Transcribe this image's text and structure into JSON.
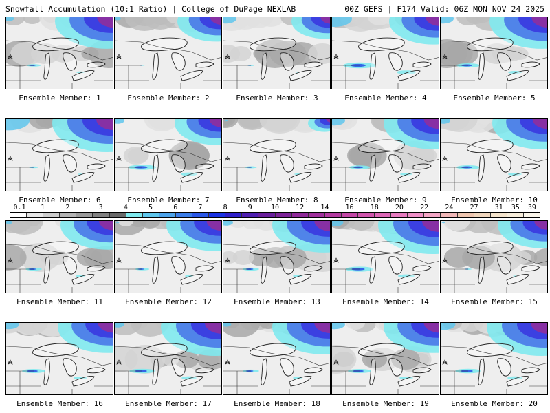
{
  "header": {
    "title_left": "Snowfall Accumulation (10:1 Ratio) | College of DuPage NEXLAB",
    "title_right": "00Z GEFS | F174 Valid: 06Z MON NOV 24 2025"
  },
  "members": [
    {
      "label": "Ensemble Member: 1",
      "ne": 0.95,
      "nw": 0.15,
      "belt": 0.3
    },
    {
      "label": "Ensemble Member: 2",
      "ne": 0.7,
      "nw": 0.1,
      "belt": 0.1
    },
    {
      "label": "Ensemble Member: 3",
      "ne": 0.6,
      "nw": 0.3,
      "belt": 0.15
    },
    {
      "label": "Ensemble Member: 4",
      "ne": 0.8,
      "nw": 0.5,
      "belt": 0.7
    },
    {
      "label": "Ensemble Member: 5",
      "ne": 0.95,
      "nw": 0.3,
      "belt": 0.5
    },
    {
      "label": "Ensemble Member: 6",
      "ne": 1.0,
      "nw": 0.6,
      "belt": 0.2
    },
    {
      "label": "Ensemble Member: 7",
      "ne": 0.75,
      "nw": 0.2,
      "belt": 0.6
    },
    {
      "label": "Ensemble Member: 8",
      "ne": 0.3,
      "nw": 0.05,
      "belt": 0.25
    },
    {
      "label": "Ensemble Member: 9",
      "ne": 0.9,
      "nw": 0.3,
      "belt": 0.45
    },
    {
      "label": "Ensemble Member: 10",
      "ne": 0.9,
      "nw": 0.2,
      "belt": 0.5
    },
    {
      "label": "Ensemble Member: 11",
      "ne": 0.85,
      "nw": 0.1,
      "belt": 0.35
    },
    {
      "label": "Ensemble Member: 12",
      "ne": 0.9,
      "nw": 0.05,
      "belt": 0.3
    },
    {
      "label": "Ensemble Member: 13",
      "ne": 0.95,
      "nw": 0.2,
      "belt": 0.35
    },
    {
      "label": "Ensemble Member: 14",
      "ne": 1.0,
      "nw": 0.25,
      "belt": 0.6
    },
    {
      "label": "Ensemble Member: 15",
      "ne": 0.8,
      "nw": 0.05,
      "belt": 0.15
    },
    {
      "label": "Ensemble Member: 16",
      "ne": 0.9,
      "nw": 0.3,
      "belt": 0.5
    },
    {
      "label": "Ensemble Member: 17",
      "ne": 1.0,
      "nw": 0.2,
      "belt": 0.55
    },
    {
      "label": "Ensemble Member: 18",
      "ne": 0.95,
      "nw": 0.15,
      "belt": 0.35
    },
    {
      "label": "Ensemble Member: 19",
      "ne": 0.9,
      "nw": 0.3,
      "belt": 0.5
    },
    {
      "label": "Ensemble Member: 20",
      "ne": 1.0,
      "nw": 0.35,
      "belt": 0.55
    }
  ],
  "legend": {
    "ticks": [
      "0.1",
      "1",
      "2",
      "3",
      "4",
      "5",
      "6",
      "7",
      "8",
      "9",
      "10",
      "12",
      "14",
      "16",
      "18",
      "20",
      "22",
      "24",
      "27",
      "31",
      "35",
      "39"
    ],
    "colors": [
      "#ffffff",
      "#e6e6e6",
      "#cccccc",
      "#b3b3b3",
      "#9a9a9a",
      "#828282",
      "#696969",
      "#7fe9ee",
      "#5fc6ec",
      "#4da3ea",
      "#3b7de8",
      "#2a57e6",
      "#1a32e3",
      "#2f1fc9",
      "#4f1fb0",
      "#6a1f9c",
      "#7d2398",
      "#8f2a99",
      "#a0309c",
      "#b33aa0",
      "#c347a6",
      "#d055ad",
      "#dc67b6",
      "#e67bbf",
      "#ef90c8",
      "#f3a6c5",
      "#f1b8b8",
      "#efc6b0",
      "#f0d6bd",
      "#f4e4cc",
      "#f8eedb",
      "#fbf6ea"
    ]
  }
}
